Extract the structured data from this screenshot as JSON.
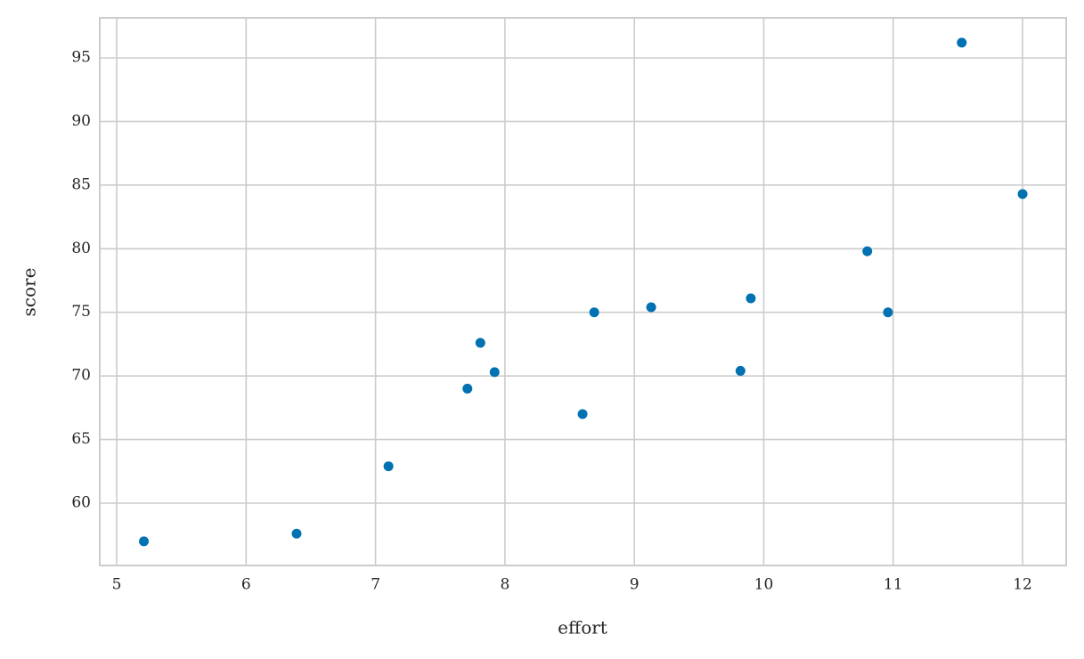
{
  "chart_data": {
    "type": "scatter",
    "x_label": "effort",
    "y_label": "score",
    "x": [
      5.21,
      6.39,
      7.1,
      7.71,
      7.81,
      7.92,
      8.6,
      8.69,
      9.13,
      9.82,
      9.9,
      10.8,
      10.96,
      11.53,
      12.0
    ],
    "values": [
      57.0,
      57.6,
      62.9,
      69.0,
      72.6,
      70.3,
      67.0,
      75.0,
      75.4,
      70.4,
      76.1,
      79.8,
      75.0,
      96.2,
      84.3
    ],
    "color": "#0072b2",
    "xlim": [
      4.869,
      12.337
    ],
    "xticks": [
      5,
      6,
      7,
      8,
      9,
      10,
      11,
      12
    ],
    "ylim": [
      55.1,
      98.15
    ],
    "yticks": [
      60,
      65,
      70,
      75,
      80,
      85,
      90,
      95
    ],
    "grid": true
  }
}
